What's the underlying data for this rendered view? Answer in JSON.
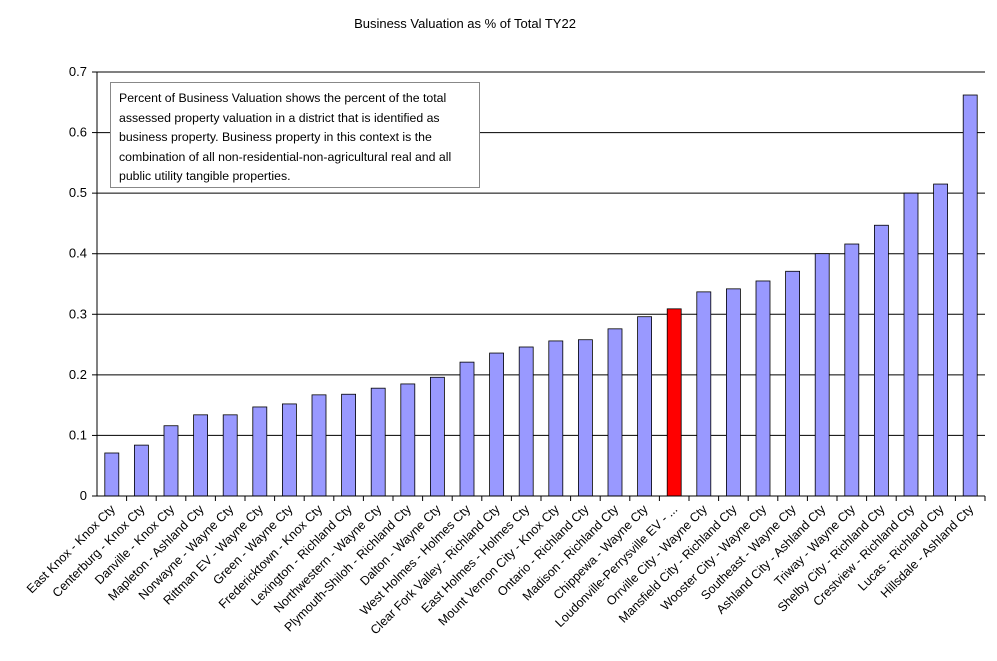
{
  "chart_data": {
    "type": "bar",
    "title": "Business Valuation as % of Total TY22",
    "xlabel": "",
    "ylabel": "",
    "ylim": [
      0,
      0.7
    ],
    "yticks": [
      "0",
      "0.1",
      "0.2",
      "0.3",
      "0.4",
      "0.5",
      "0.6",
      "0.7"
    ],
    "grid": true,
    "legend": "none",
    "annotation": "Percent of Business Valuation shows the percent of the total assessed property valuation in a district that is identified as business property. Business property in this context is the combination of all non-residential-non-agricultural real and all public utility tangible properties.",
    "colors": {
      "default": "#9999FF",
      "highlight": "#FF0000"
    },
    "highlight_category": "Loudonville-Perrysville EV - ...",
    "categories": [
      "East Knox - Knox Cty",
      "Centerburg - Knox Cty",
      "Danville - Knox Cty",
      "Mapleton - Ashland Cty",
      "Norwayne - Wayne Cty",
      "Rittman EV - Wayne Cty",
      "Green - Wayne Cty",
      "Fredericktown - Knox Cty",
      "Lexington - Richland Cty",
      "Northwestern - Wayne Cty",
      "Plymouth-Shiloh - Richland Cty",
      "Dalton - Wayne Cty",
      "West Holmes - Holmes Cty",
      "Clear Fork Valley - Richland Cty",
      "East Holmes - Holmes Cty",
      "Mount Vernon City - Knox Cty",
      "Ontario - Richland Cty",
      "Madison - Richland Cty",
      "Chippewa - Wayne Cty",
      "Loudonville-Perrysville EV - ...",
      "Orrville City - Wayne Cty",
      "Mansfield City - Richland Cty",
      "Wooster City - Wayne Cty",
      "Southeast - Wayne Cty",
      "Ashland City - Ashland Cty",
      "Triway - Wayne Cty",
      "Shelby City - Richland Cty",
      "Crestview - Richland Cty",
      "Lucas - Richland Cty",
      "Hillsdale - Ashland Cty"
    ],
    "values": [
      0.071,
      0.084,
      0.116,
      0.134,
      0.134,
      0.147,
      0.152,
      0.167,
      0.168,
      0.178,
      0.185,
      0.196,
      0.221,
      0.236,
      0.246,
      0.256,
      0.258,
      0.276,
      0.296,
      0.309,
      0.337,
      0.342,
      0.355,
      0.371,
      0.4,
      0.416,
      0.447,
      0.5,
      0.515,
      0.662
    ]
  }
}
